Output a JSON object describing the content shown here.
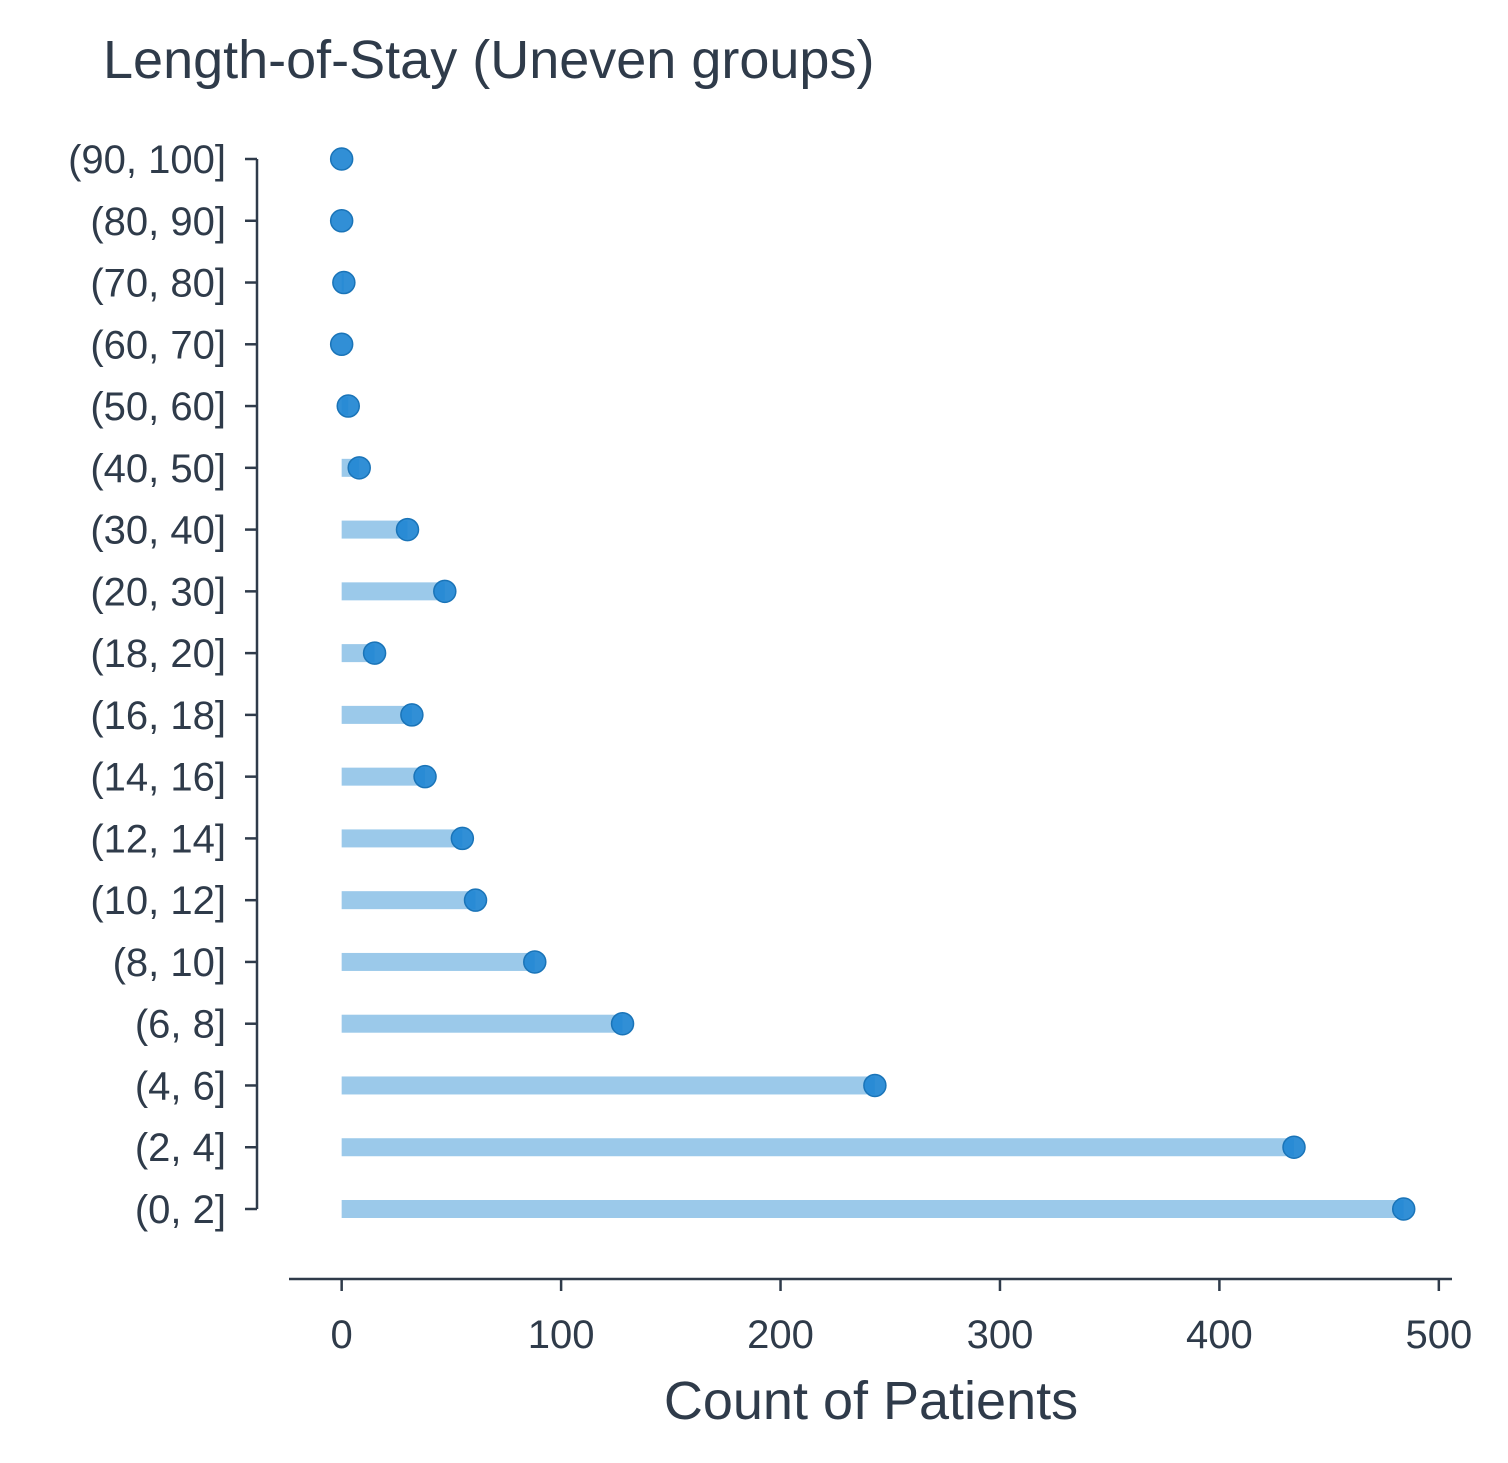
{
  "chart_data": {
    "type": "lollipop",
    "title": "Length-of-Stay (Uneven groups)",
    "xlabel": "Count of Patients",
    "ylabel": "",
    "xlim": [
      -24,
      506
    ],
    "x_ticks": [
      0,
      100,
      200,
      300,
      400,
      500
    ],
    "orientation": "horizontal",
    "grid": false,
    "legend": "none",
    "categories": [
      "(0, 2]",
      "(2, 4]",
      "(4, 6]",
      "(6, 8]",
      "(8, 10]",
      "(10, 12]",
      "(12, 14]",
      "(14, 16]",
      "(16, 18]",
      "(18, 20]",
      "(20, 30]",
      "(30, 40]",
      "(40, 50]",
      "(50, 60]",
      "(60, 70]",
      "(70, 80]",
      "(80, 90]",
      "(90, 100]"
    ],
    "values": [
      484,
      434,
      243,
      128,
      88,
      61,
      55,
      38,
      32,
      15,
      47,
      30,
      8,
      3,
      0,
      1,
      0,
      0
    ],
    "colors": {
      "stem": "#9bc9ea",
      "dot": "#1f86d2",
      "dot_edge": "#1a74b8",
      "text": "#2f3b4a"
    }
  }
}
